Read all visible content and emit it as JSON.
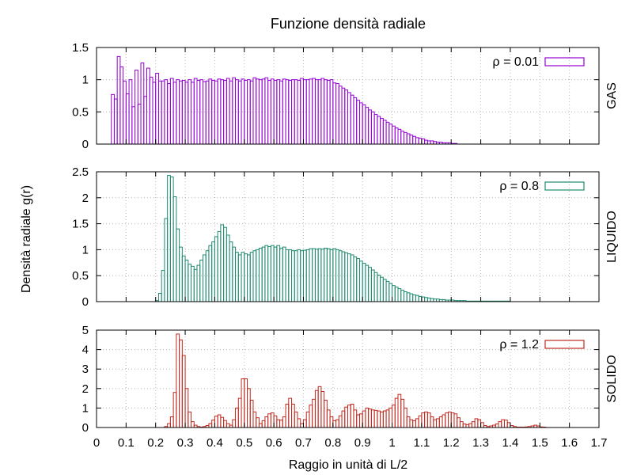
{
  "chart_data": {
    "type": "bar",
    "title": "Funzione densità radiale",
    "xlabel": "Raggio in unità di L/2",
    "ylabel": "Densità radiale g(r)",
    "xlim": [
      0,
      1.7
    ],
    "x_ticks": [
      "0",
      "0.1",
      "0.2",
      "0.3",
      "0.4",
      "0.5",
      "0.6",
      "0.7",
      "0.8",
      "0.9",
      "1",
      "1.1",
      "1.2",
      "1.3",
      "1.4",
      "1.5",
      "1.6",
      "1.7"
    ],
    "grid": true,
    "legend_position": "top-right",
    "bin_width": 0.01,
    "panels": [
      {
        "label": "GAS",
        "legend": "ρ = 0.01",
        "color": "#9400d3",
        "ylim": [
          0,
          1.5
        ],
        "y_ticks": [
          "0",
          "0.5",
          "1",
          "1.5"
        ],
        "x_start": 0.05,
        "values": [
          0.77,
          0.7,
          1.36,
          1.2,
          0.98,
          0.78,
          1.0,
          0.58,
          1.15,
          0.62,
          1.26,
          0.74,
          1.18,
          1.04,
          0.96,
          1.1,
          0.98,
          0.98,
          1.0,
          0.94,
          1.02,
          0.96,
          1.0,
          0.98,
          0.99,
          0.96,
          1.0,
          0.96,
          1.02,
          0.99,
          1.0,
          0.97,
          0.98,
          1.01,
          0.99,
          0.98,
          1.01,
          1.0,
          0.99,
          1.02,
          0.98,
          1.03,
          1.0,
          0.98,
          1.01,
          0.99,
          1.0,
          0.98,
          1.03,
          1.01,
          1.0,
          1.01,
          1.03,
          0.99,
          1.01,
          0.99,
          1.0,
          0.98,
          1.01,
          1.0,
          0.99,
          1.0,
          1.0,
          0.99,
          1.02,
          1.0,
          1.0,
          1.01,
          1.02,
          1.0,
          1.0,
          1.02,
          1.0,
          0.99,
          1.0,
          0.95,
          0.94,
          0.9,
          0.87,
          0.84,
          0.8,
          0.76,
          0.72,
          0.68,
          0.64,
          0.61,
          0.57,
          0.53,
          0.5,
          0.46,
          0.43,
          0.4,
          0.37,
          0.34,
          0.31,
          0.28,
          0.25,
          0.23,
          0.2,
          0.18,
          0.16,
          0.14,
          0.12,
          0.1,
          0.09,
          0.08,
          0.06,
          0.05,
          0.05,
          0.04,
          0.03,
          0.03,
          0.02,
          0.02,
          0.02,
          0.01,
          0.01
        ]
      },
      {
        "label": "LIQUIDO",
        "legend": "ρ = 0.8",
        "color": "#1e8a6e",
        "ylim": [
          0,
          2.5
        ],
        "y_ticks": [
          "0",
          "0.5",
          "1",
          "1.5",
          "2",
          "2.5"
        ],
        "x_start": 0.2,
        "values": [
          0.02,
          0.16,
          0.6,
          1.6,
          2.43,
          2.4,
          2.02,
          1.4,
          1.05,
          0.88,
          0.8,
          0.72,
          0.68,
          0.62,
          0.7,
          0.8,
          0.9,
          0.98,
          1.08,
          1.15,
          1.25,
          1.35,
          1.48,
          1.43,
          1.28,
          1.15,
          1.05,
          0.95,
          0.9,
          0.95,
          0.92,
          0.9,
          0.95,
          0.98,
          1.0,
          1.03,
          1.05,
          1.08,
          1.06,
          1.08,
          1.05,
          1.08,
          1.03,
          1.05,
          1.0,
          1.0,
          0.98,
          0.98,
          1.0,
          0.98,
          0.99,
          1.0,
          1.02,
          1.02,
          1.01,
          1.02,
          1.01,
          1.03,
          1.02,
          1.0,
          1.02,
          1.0,
          0.98,
          0.96,
          0.94,
          0.92,
          0.9,
          0.86,
          0.83,
          0.78,
          0.74,
          0.7,
          0.66,
          0.61,
          0.56,
          0.51,
          0.47,
          0.43,
          0.39,
          0.35,
          0.31,
          0.28,
          0.25,
          0.22,
          0.19,
          0.17,
          0.15,
          0.13,
          0.12,
          0.1,
          0.09,
          0.08,
          0.07,
          0.06,
          0.05,
          0.05,
          0.04,
          0.04,
          0.03,
          0.03,
          0.03,
          0.02,
          0.02,
          0.02,
          0.02,
          0.01,
          0.01,
          0.01,
          0.01,
          0.01,
          0.01,
          0.01,
          0.01,
          0.01,
          0.01,
          0.01,
          0.01,
          0.01,
          0.01,
          0.01
        ]
      },
      {
        "label": "SOLIDO",
        "legend": "ρ = 1.2",
        "color": "#c0281e",
        "ylim": [
          0,
          5
        ],
        "y_ticks": [
          "0",
          "1",
          "2",
          "3",
          "4",
          "5"
        ],
        "x_start": 0.23,
        "values": [
          0.05,
          0.2,
          0.55,
          1.8,
          4.8,
          4.5,
          3.7,
          2.0,
          0.8,
          0.3,
          0.12,
          0.05,
          0.02,
          0.05,
          0.1,
          0.2,
          0.38,
          0.58,
          0.65,
          0.52,
          0.36,
          0.2,
          0.12,
          0.4,
          1.0,
          1.5,
          2.5,
          2.5,
          2.0,
          1.4,
          0.8,
          0.5,
          0.2,
          0.35,
          0.55,
          0.7,
          0.75,
          0.6,
          0.4,
          0.38,
          0.55,
          1.2,
          1.5,
          1.2,
          0.8,
          0.45,
          0.2,
          0.4,
          0.8,
          1.15,
          1.45,
          1.9,
          2.1,
          1.85,
          1.4,
          0.9,
          0.55,
          0.35,
          0.4,
          0.6,
          0.85,
          1.05,
          1.15,
          1.2,
          0.9,
          0.65,
          0.7,
          0.85,
          1.0,
          0.95,
          0.9,
          0.88,
          0.85,
          0.8,
          0.85,
          0.9,
          1.0,
          1.15,
          1.5,
          1.7,
          1.45,
          1.0,
          0.55,
          0.4,
          0.35,
          0.45,
          0.6,
          0.75,
          0.8,
          0.75,
          0.55,
          0.4,
          0.45,
          0.55,
          0.65,
          0.75,
          0.8,
          0.75,
          0.7,
          0.5,
          0.3,
          0.18,
          0.15,
          0.2,
          0.3,
          0.45,
          0.4,
          0.25,
          0.1,
          0.05,
          0.08,
          0.12,
          0.18,
          0.3,
          0.4,
          0.38,
          0.25,
          0.1,
          0.05,
          0.02,
          0.02,
          0.02,
          0.03,
          0.05,
          0.08,
          0.12,
          0.08,
          0.03,
          0.02
        ]
      }
    ]
  }
}
